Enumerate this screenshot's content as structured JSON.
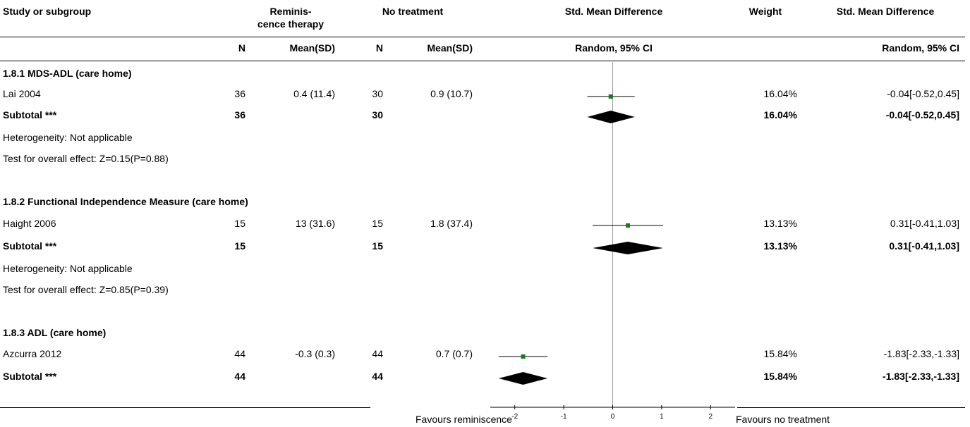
{
  "header": {
    "study": "Study or subgroup",
    "group1": "Reminis-",
    "group1b": "cence therapy",
    "group2": "No treatment",
    "smd": "Std. Mean Difference",
    "weight": "Weight",
    "smd2": "Std. Mean Difference",
    "n": "N",
    "meansd": "Mean(SD)",
    "random_ci": "Random, 95% CI",
    "random_ci2": "Random, 95% CI"
  },
  "footer": {
    "left": "Favours reminiscence",
    "right": "Favours no treatment"
  },
  "rows": [
    {
      "kind": "group",
      "label": "1.8.1 MDS-ADL (care home)"
    },
    {
      "kind": "study",
      "label": "Lai 2004",
      "n1": "36",
      "m1": "0.4 (11.4)",
      "n2": "30",
      "m2": "0.9 (10.7)",
      "weight": "16.04%",
      "ci": "-0.04[-0.52,0.45]"
    },
    {
      "kind": "subtotal",
      "label": "Subtotal ***",
      "n1": "36",
      "n2": "30",
      "weight": "16.04%",
      "ci": "-0.04[-0.52,0.45]"
    },
    {
      "kind": "text",
      "label": "Heterogeneity: Not applicable"
    },
    {
      "kind": "text",
      "label": "Test for overall effect: Z=0.15(P=0.88)"
    },
    {
      "kind": "group",
      "label": "1.8.2 Functional Independence Measure (care home)"
    },
    {
      "kind": "study",
      "label": "Haight 2006",
      "n1": "15",
      "m1": "13 (31.6)",
      "n2": "15",
      "m2": "1.8 (37.4)",
      "weight": "13.13%",
      "ci": "0.31[-0.41,1.03]"
    },
    {
      "kind": "subtotal",
      "label": "Subtotal ***",
      "n1": "15",
      "n2": "15",
      "weight": "13.13%",
      "ci": "0.31[-0.41,1.03]"
    },
    {
      "kind": "text",
      "label": "Heterogeneity: Not applicable"
    },
    {
      "kind": "text",
      "label": "Test for overall effect: Z=0.85(P=0.39)"
    },
    {
      "kind": "group",
      "label": "1.8.3 ADL (care home)"
    },
    {
      "kind": "study",
      "label": "Azcurra 2012",
      "n1": "44",
      "m1": "-0.3 (0.3)",
      "n2": "44",
      "m2": "0.7 (0.7)",
      "weight": "15.84%",
      "ci": "-1.83[-2.33,-1.33]"
    },
    {
      "kind": "subtotal",
      "label": "Subtotal ***",
      "n1": "44",
      "n2": "44",
      "weight": "15.84%",
      "ci": "-1.83[-2.33,-1.33]"
    }
  ],
  "chart_data": {
    "type": "forest",
    "xlim": [
      -2.5,
      2.5
    ],
    "xticks": [
      "-2",
      "-1",
      "0",
      "1",
      "2"
    ],
    "xtick_values": [
      -2,
      -1,
      0,
      1,
      2
    ],
    "studies": [
      {
        "name": "Lai 2004",
        "est": -0.04,
        "lo": -0.52,
        "hi": 0.45
      },
      {
        "name": "Haight 2006",
        "est": 0.31,
        "lo": -0.41,
        "hi": 1.03
      },
      {
        "name": "Azcurra 2012",
        "est": -1.83,
        "lo": -2.33,
        "hi": -1.33
      }
    ],
    "subtotals": [
      {
        "name": "Subtotal 1.8.1",
        "est": -0.04,
        "lo": -0.52,
        "hi": 0.45
      },
      {
        "name": "Subtotal 1.8.2",
        "est": 0.31,
        "lo": -0.41,
        "hi": 1.03
      },
      {
        "name": "Subtotal 1.8.3",
        "est": -1.83,
        "lo": -2.33,
        "hi": -1.33
      }
    ],
    "colors": {
      "marker": "#1a7a1a",
      "diamond": "#000000",
      "line": "#000000"
    }
  }
}
